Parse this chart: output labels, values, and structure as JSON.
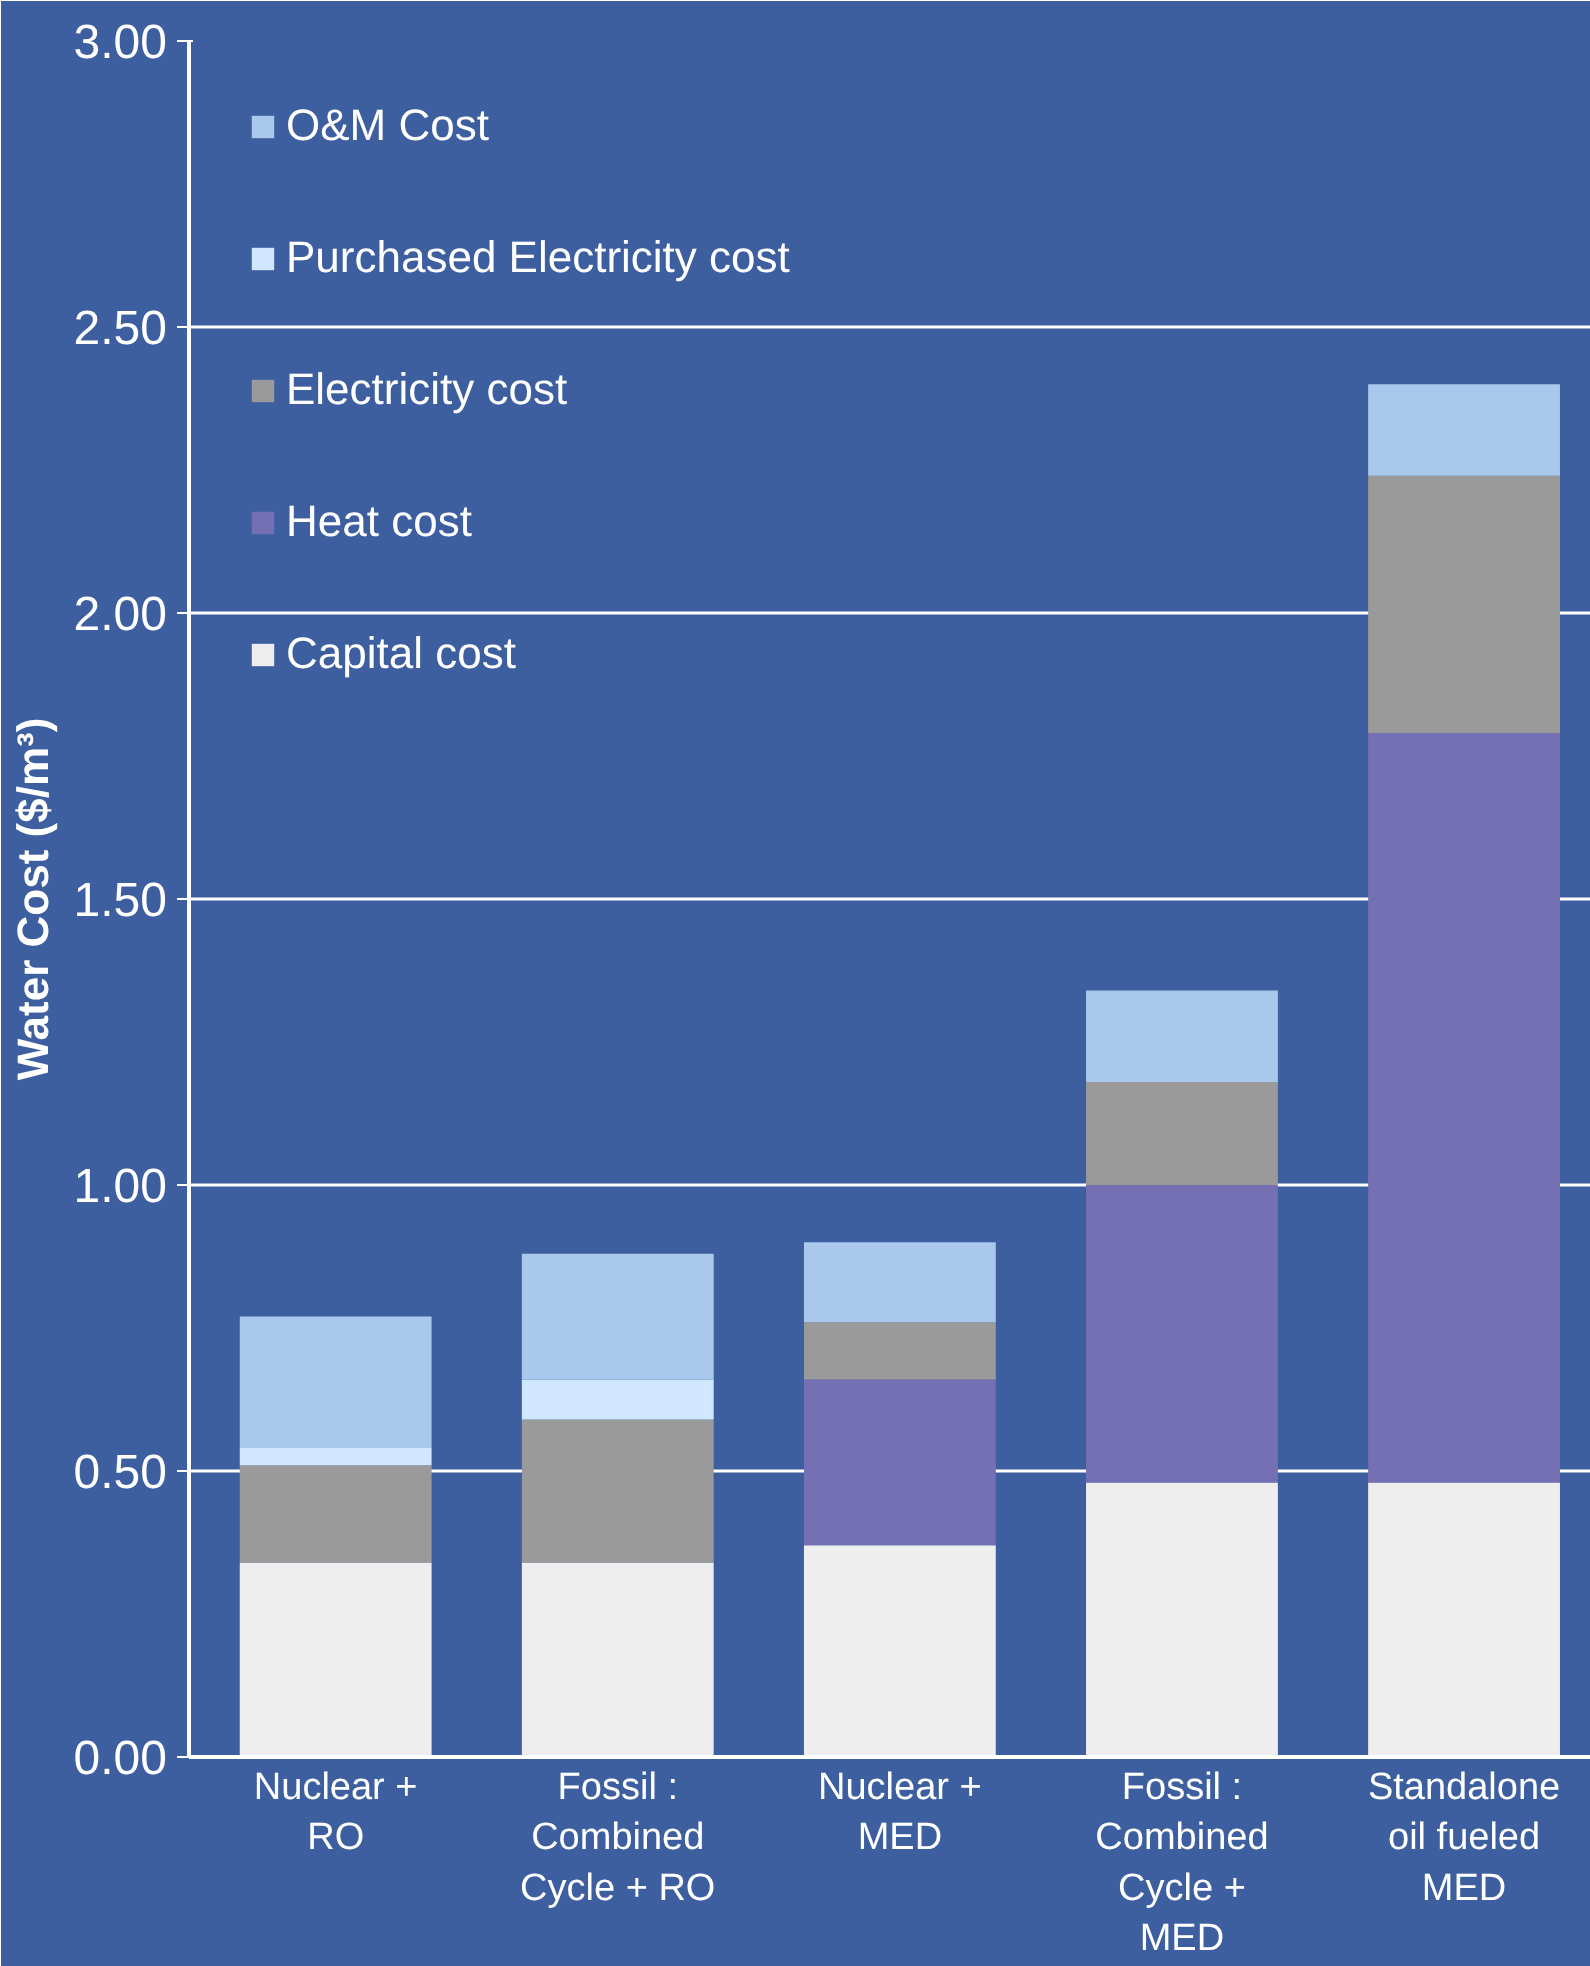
{
  "chart_data": {
    "type": "bar",
    "stacked": true,
    "ylabel": "Water Cost ($/m³)",
    "categories": [
      "Nuclear +\nRO",
      "Fossil :\nCombined\nCycle + RO",
      "Nuclear +\nMED",
      "Fossil :\nCombined\nCycle +\nMED",
      "Standalone\noil fueled\nMED"
    ],
    "series": [
      {
        "name": "Capital cost",
        "color": "#eeeeee",
        "values": [
          0.34,
          0.34,
          0.37,
          0.48,
          0.48
        ]
      },
      {
        "name": "Heat cost",
        "color": "#7570b3",
        "values": [
          0,
          0,
          0.29,
          0.52,
          1.31
        ]
      },
      {
        "name": "Electricity cost",
        "color": "#9a9a9a",
        "values": [
          0.17,
          0.25,
          0.1,
          0.18,
          0.45
        ]
      },
      {
        "name": "Purchased Electricity cost",
        "color": "#cfe7ff",
        "values": [
          0.03,
          0.07,
          0,
          0,
          0
        ]
      },
      {
        "name": "O&M Cost",
        "color": "#a9c8ec",
        "values": [
          0.23,
          0.22,
          0.14,
          0.16,
          0.16
        ]
      }
    ],
    "ylim": [
      0,
      3
    ],
    "yticks": [
      {
        "value": 0,
        "label": "0.00"
      },
      {
        "value": 0.5,
        "label": "0.50"
      },
      {
        "value": 1,
        "label": "1.00"
      },
      {
        "value": 1.5,
        "label": "1.50"
      },
      {
        "value": 2,
        "label": "2.00"
      },
      {
        "value": 2.5,
        "label": "2.50"
      },
      {
        "value": 3,
        "label": "3.00"
      }
    ],
    "grid": "y",
    "legend": "top left"
  }
}
